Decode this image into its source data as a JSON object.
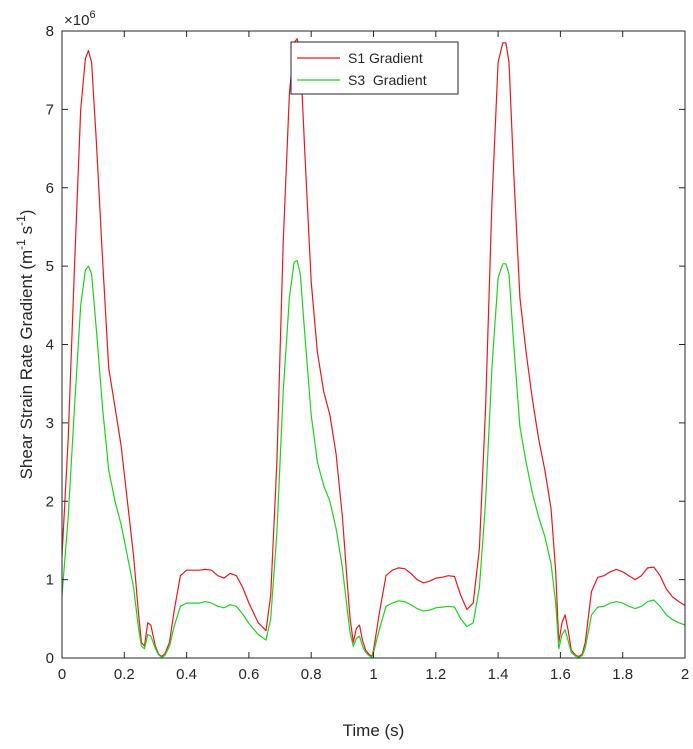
{
  "chart_data": {
    "type": "line",
    "title": "",
    "xlabel": "Time (s)",
    "ylabel": "Shear Strain Rate Gradient (m-1 s-1)",
    "ylabel_parts": {
      "main": "Shear Strain Rate Gradient (m",
      "exp1": "-1",
      "mid": " s",
      "exp2": "-1",
      "end": ")"
    },
    "y_multiplier": {
      "base": "×10",
      "exponent": "6"
    },
    "xlim": [
      0,
      2
    ],
    "ylim": [
      0,
      8
    ],
    "xticks": [
      "0",
      "0.2",
      "0.4",
      "0.6",
      "0.8",
      "1",
      "1.2",
      "1.4",
      "1.6",
      "1.8",
      "2"
    ],
    "yticks": [
      "0",
      "1",
      "2",
      "3",
      "4",
      "5",
      "6",
      "7",
      "8"
    ],
    "grid": false,
    "legend_position": "top-center",
    "series": [
      {
        "name": "S1 Gradient",
        "color": "#e8191d",
        "x": [
          0.0,
          0.02,
          0.04,
          0.06,
          0.075,
          0.085,
          0.095,
          0.11,
          0.13,
          0.15,
          0.17,
          0.19,
          0.21,
          0.23,
          0.245,
          0.255,
          0.265,
          0.275,
          0.285,
          0.3,
          0.31,
          0.32,
          0.33,
          0.345,
          0.36,
          0.38,
          0.4,
          0.42,
          0.44,
          0.46,
          0.48,
          0.5,
          0.52,
          0.54,
          0.56,
          0.58,
          0.6,
          0.63,
          0.655,
          0.67,
          0.69,
          0.71,
          0.73,
          0.745,
          0.755,
          0.765,
          0.78,
          0.8,
          0.82,
          0.84,
          0.86,
          0.88,
          0.9,
          0.915,
          0.925,
          0.935,
          0.945,
          0.955,
          0.965,
          0.975,
          0.985,
          0.995,
          1.0,
          1.02,
          1.04,
          1.06,
          1.08,
          1.1,
          1.12,
          1.14,
          1.16,
          1.18,
          1.2,
          1.22,
          1.24,
          1.26,
          1.28,
          1.3,
          1.32,
          1.34,
          1.36,
          1.38,
          1.4,
          1.415,
          1.425,
          1.435,
          1.45,
          1.47,
          1.49,
          1.51,
          1.53,
          1.55,
          1.57,
          1.585,
          1.595,
          1.605,
          1.615,
          1.625,
          1.635,
          1.65,
          1.66,
          1.67,
          1.68,
          1.7,
          1.72,
          1.74,
          1.76,
          1.78,
          1.8,
          1.82,
          1.84,
          1.86,
          1.88,
          1.9,
          1.92,
          1.94,
          1.96,
          1.98,
          2.0
        ],
        "values": [
          1.3,
          2.8,
          5.0,
          7.0,
          7.65,
          7.75,
          7.6,
          6.6,
          5.1,
          3.7,
          3.2,
          2.7,
          2.0,
          1.3,
          0.6,
          0.2,
          0.15,
          0.45,
          0.42,
          0.15,
          0.05,
          0.02,
          0.05,
          0.2,
          0.6,
          1.05,
          1.12,
          1.12,
          1.12,
          1.13,
          1.12,
          1.05,
          1.02,
          1.08,
          1.05,
          0.9,
          0.7,
          0.45,
          0.35,
          0.8,
          2.5,
          5.3,
          7.2,
          7.85,
          7.9,
          7.7,
          6.4,
          4.8,
          3.9,
          3.4,
          3.1,
          2.6,
          1.8,
          1.0,
          0.5,
          0.2,
          0.38,
          0.42,
          0.22,
          0.1,
          0.05,
          0.02,
          0.1,
          0.6,
          1.05,
          1.12,
          1.15,
          1.14,
          1.08,
          1.0,
          0.96,
          0.98,
          1.02,
          1.03,
          1.05,
          1.04,
          0.8,
          0.62,
          0.7,
          1.4,
          3.2,
          5.8,
          7.6,
          7.85,
          7.85,
          7.6,
          6.2,
          4.6,
          3.9,
          3.3,
          2.8,
          2.4,
          1.9,
          1.1,
          0.2,
          0.45,
          0.55,
          0.35,
          0.1,
          0.03,
          0.02,
          0.05,
          0.2,
          0.85,
          1.03,
          1.05,
          1.1,
          1.13,
          1.1,
          1.05,
          1.0,
          1.05,
          1.15,
          1.16,
          1.05,
          0.88,
          0.78,
          0.72,
          0.67
        ]
      },
      {
        "name": "S3  Gradient",
        "color": "#1ed31e",
        "x": [
          0.0,
          0.02,
          0.04,
          0.06,
          0.075,
          0.085,
          0.095,
          0.11,
          0.13,
          0.15,
          0.17,
          0.19,
          0.21,
          0.23,
          0.245,
          0.255,
          0.265,
          0.275,
          0.285,
          0.3,
          0.31,
          0.32,
          0.33,
          0.345,
          0.36,
          0.38,
          0.4,
          0.42,
          0.44,
          0.46,
          0.48,
          0.5,
          0.52,
          0.54,
          0.56,
          0.58,
          0.6,
          0.63,
          0.655,
          0.67,
          0.69,
          0.71,
          0.73,
          0.745,
          0.755,
          0.765,
          0.78,
          0.8,
          0.82,
          0.84,
          0.86,
          0.88,
          0.9,
          0.915,
          0.925,
          0.935,
          0.945,
          0.955,
          0.965,
          0.975,
          0.985,
          0.995,
          1.0,
          1.02,
          1.04,
          1.06,
          1.08,
          1.1,
          1.12,
          1.14,
          1.16,
          1.18,
          1.2,
          1.22,
          1.24,
          1.26,
          1.28,
          1.3,
          1.32,
          1.34,
          1.36,
          1.38,
          1.4,
          1.415,
          1.425,
          1.435,
          1.45,
          1.47,
          1.49,
          1.51,
          1.53,
          1.55,
          1.57,
          1.585,
          1.595,
          1.605,
          1.615,
          1.625,
          1.635,
          1.65,
          1.66,
          1.67,
          1.68,
          1.7,
          1.72,
          1.74,
          1.76,
          1.78,
          1.8,
          1.82,
          1.84,
          1.86,
          1.88,
          1.9,
          1.92,
          1.94,
          1.96,
          1.98,
          2.0
        ],
        "values": [
          0.8,
          1.8,
          3.2,
          4.5,
          4.95,
          5.0,
          4.9,
          4.2,
          3.2,
          2.4,
          2.0,
          1.7,
          1.3,
          0.9,
          0.4,
          0.15,
          0.12,
          0.3,
          0.28,
          0.12,
          0.04,
          0.01,
          0.03,
          0.15,
          0.4,
          0.66,
          0.7,
          0.7,
          0.7,
          0.72,
          0.7,
          0.66,
          0.64,
          0.68,
          0.66,
          0.56,
          0.44,
          0.3,
          0.23,
          0.5,
          1.6,
          3.4,
          4.6,
          5.05,
          5.07,
          4.9,
          4.1,
          3.1,
          2.5,
          2.2,
          2.0,
          1.65,
          1.15,
          0.65,
          0.32,
          0.15,
          0.25,
          0.28,
          0.15,
          0.07,
          0.03,
          0.01,
          0.07,
          0.38,
          0.66,
          0.7,
          0.73,
          0.72,
          0.68,
          0.63,
          0.6,
          0.61,
          0.64,
          0.65,
          0.66,
          0.65,
          0.5,
          0.4,
          0.45,
          0.9,
          2.0,
          3.7,
          4.85,
          5.03,
          5.03,
          4.9,
          4.0,
          2.95,
          2.5,
          2.1,
          1.8,
          1.55,
          1.2,
          0.7,
          0.12,
          0.3,
          0.36,
          0.22,
          0.07,
          0.02,
          0.01,
          0.03,
          0.13,
          0.55,
          0.65,
          0.66,
          0.7,
          0.72,
          0.7,
          0.66,
          0.63,
          0.66,
          0.72,
          0.74,
          0.66,
          0.55,
          0.49,
          0.45,
          0.42
        ]
      }
    ]
  }
}
